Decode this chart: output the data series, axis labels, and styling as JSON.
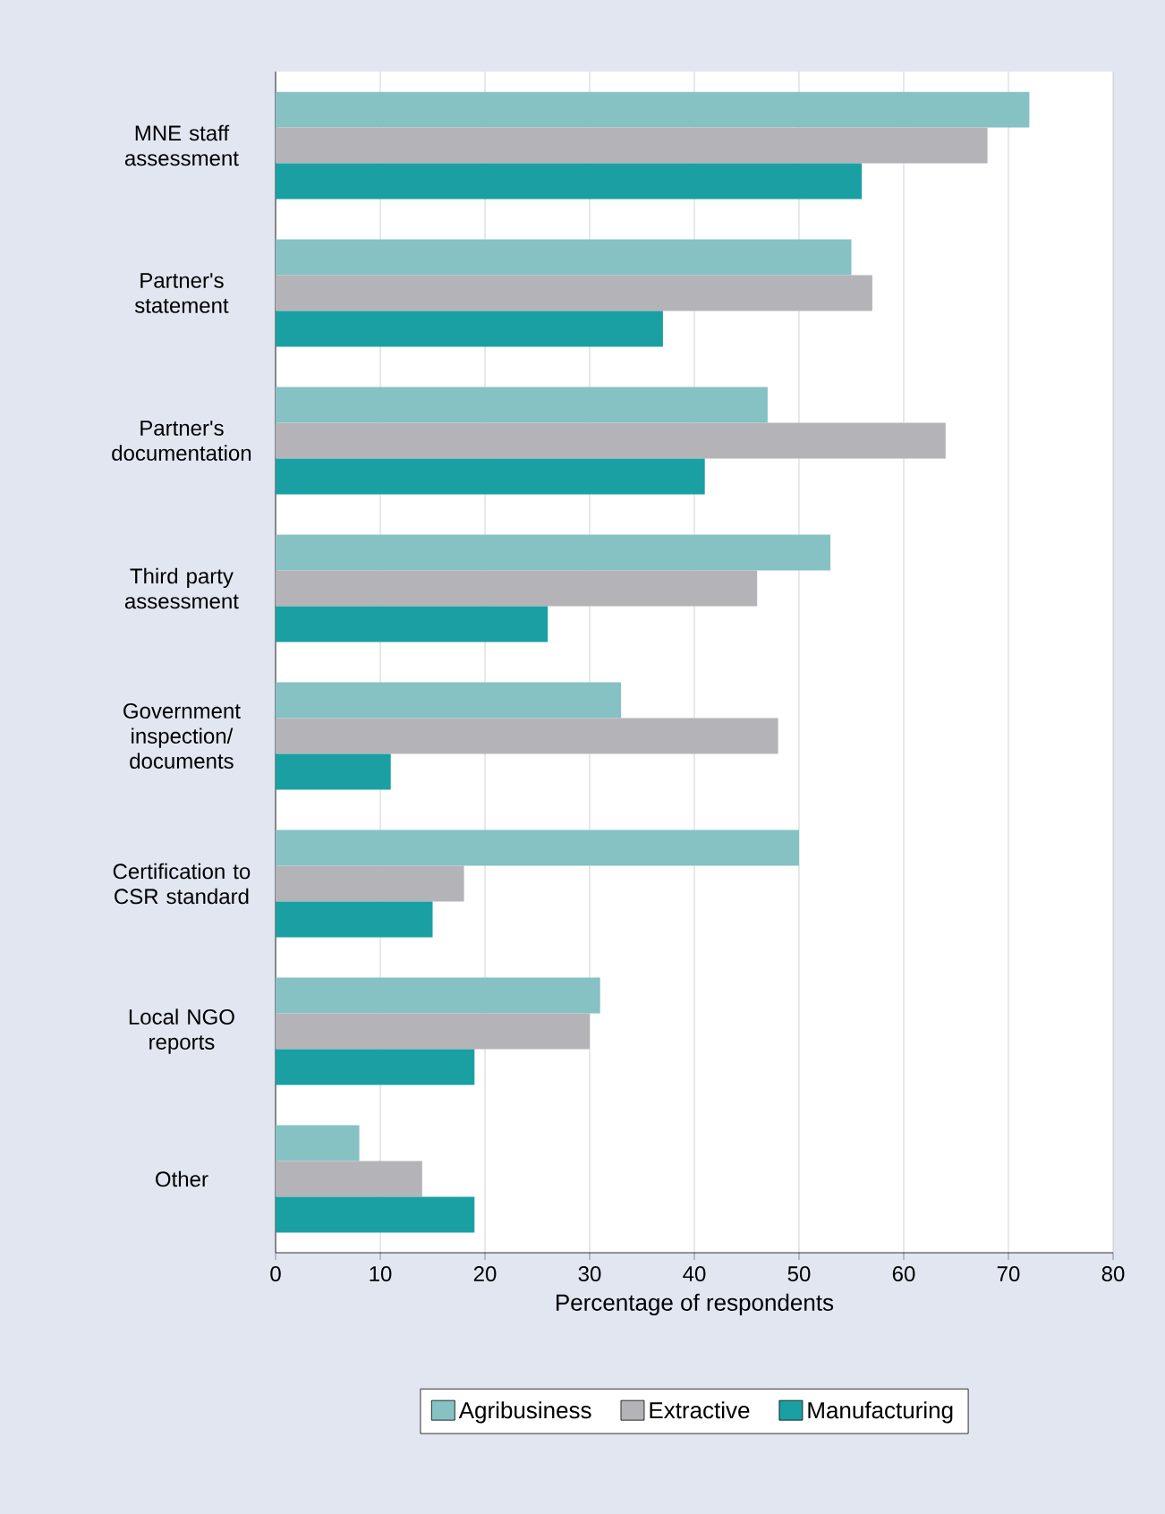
{
  "chart_data": {
    "type": "bar",
    "orientation": "horizontal",
    "categories": [
      "MNE staff assessment",
      "Partner's statement",
      "Partner's documentation",
      "Third party assessment",
      "Government inspection/ documents",
      "Certification to CSR standard",
      "Local NGO reports",
      "Other"
    ],
    "series": [
      {
        "name": "Agribusiness",
        "color": "#86c1c4",
        "values": [
          72,
          55,
          47,
          53,
          33,
          50,
          31,
          8
        ]
      },
      {
        "name": "Extractive",
        "color": "#b4b4b8",
        "values": [
          68,
          57,
          64,
          46,
          48,
          18,
          30,
          14
        ]
      },
      {
        "name": "Manufacturing",
        "color": "#1aa0a3",
        "values": [
          56,
          37,
          41,
          26,
          11,
          15,
          19,
          19
        ]
      }
    ],
    "xlabel": "Percentage of respondents",
    "xlim": [
      0,
      80
    ],
    "xticks": [
      0,
      10,
      20,
      30,
      40,
      50,
      60,
      70,
      80
    ],
    "grid": "x",
    "legend": "bottom"
  }
}
